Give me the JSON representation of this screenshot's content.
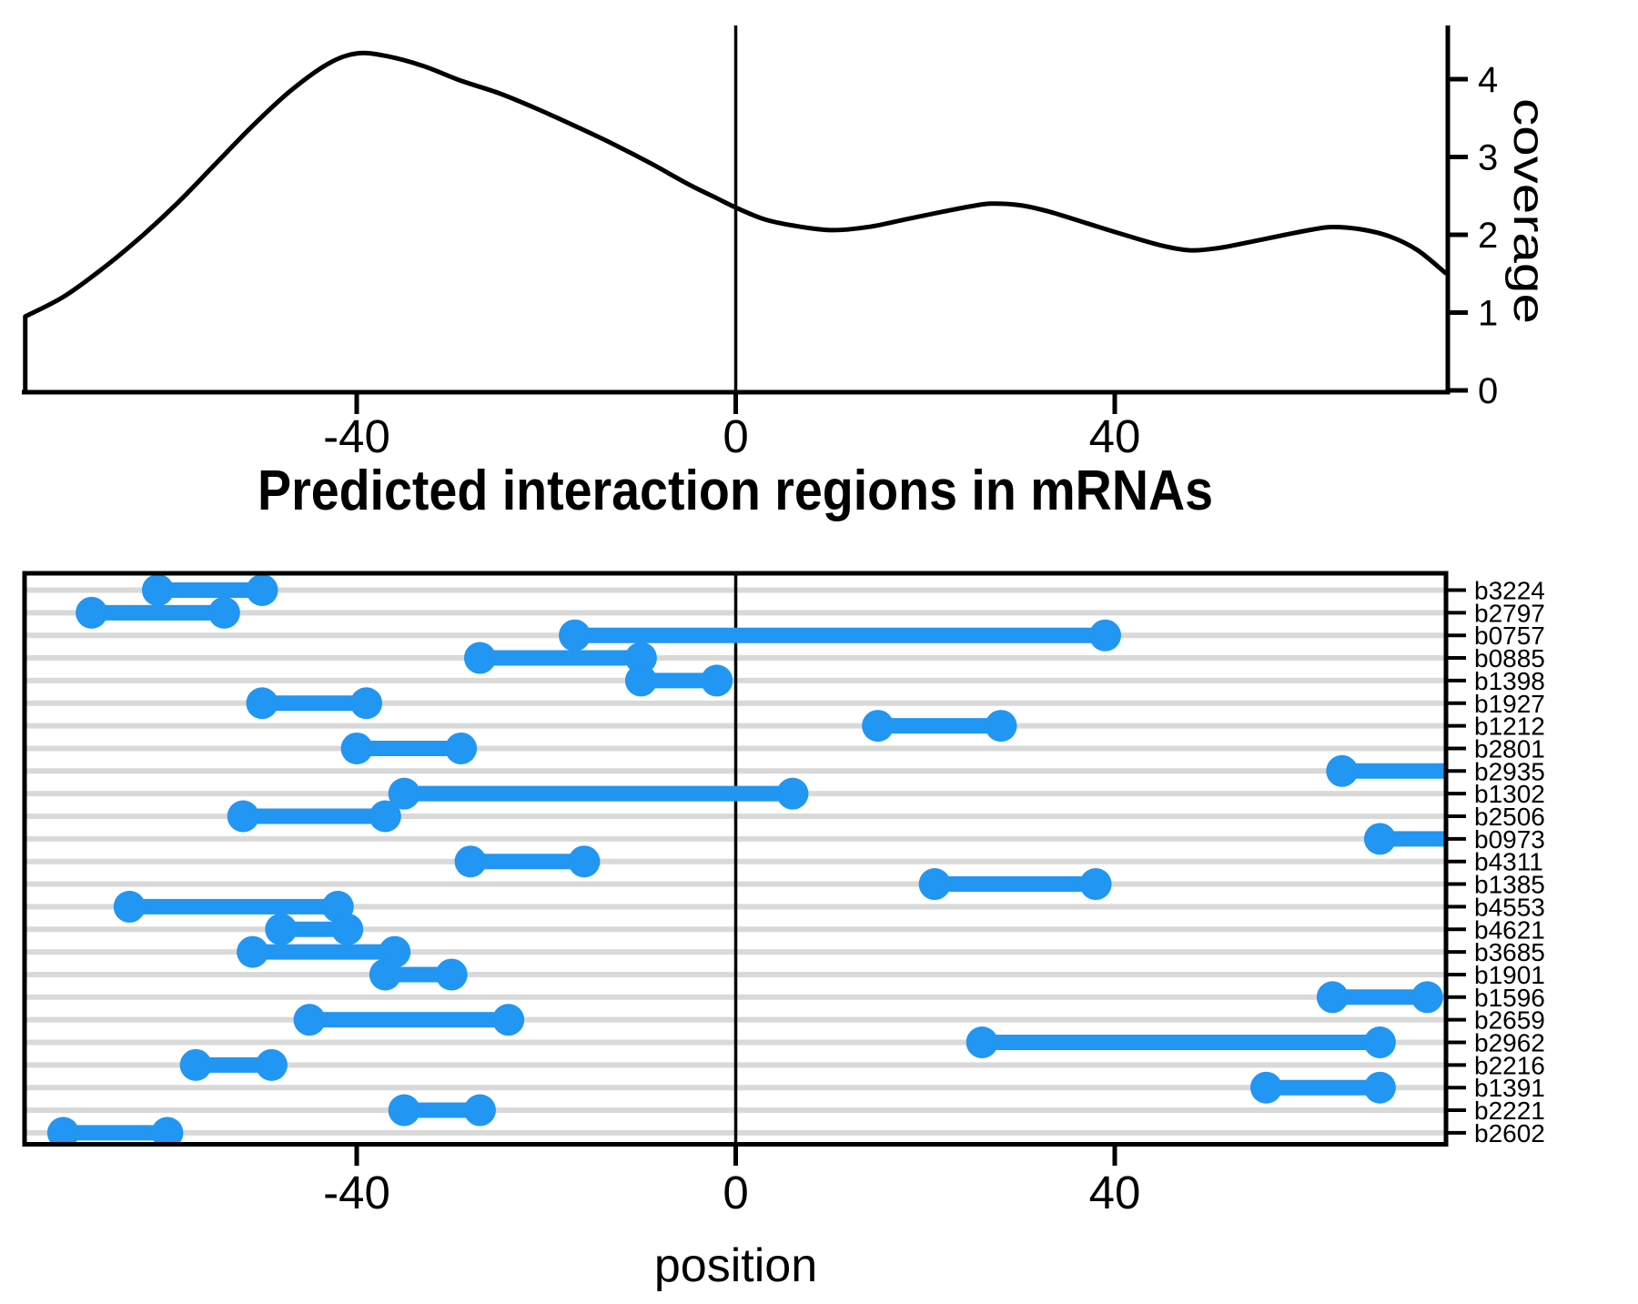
{
  "colors": {
    "segment_blue": "#2196F3",
    "gridline_gray": "#D9D9D9",
    "axis_black": "#000000",
    "background": "#FFFFFF"
  },
  "chart_data": [
    {
      "type": "line",
      "title": "",
      "ylabel": "coverage",
      "xlabel": "",
      "xlim": [
        -75,
        75
      ],
      "ylim": [
        0,
        4.69
      ],
      "xticks": [
        -40,
        0,
        40
      ],
      "xtick_labels": [
        "-40",
        "0",
        "40"
      ],
      "yticks": [
        0,
        1,
        2,
        3,
        4
      ],
      "ytick_labels": [
        "0",
        "1",
        "2",
        "3",
        "4"
      ],
      "yaxis_side": "right",
      "grid": false,
      "zero_line": true,
      "points": [
        [
          -75,
          0
        ],
        [
          -75,
          0.95
        ],
        [
          -71,
          1.2
        ],
        [
          -67,
          1.55
        ],
        [
          -63,
          1.95
        ],
        [
          -59,
          2.4
        ],
        [
          -55,
          2.9
        ],
        [
          -51,
          3.4
        ],
        [
          -47,
          3.85
        ],
        [
          -43,
          4.2
        ],
        [
          -40,
          4.33
        ],
        [
          -37,
          4.3
        ],
        [
          -33,
          4.17
        ],
        [
          -29,
          3.98
        ],
        [
          -25,
          3.82
        ],
        [
          -21,
          3.62
        ],
        [
          -17,
          3.4
        ],
        [
          -13,
          3.17
        ],
        [
          -9,
          2.92
        ],
        [
          -5,
          2.65
        ],
        [
          -2,
          2.47
        ],
        [
          0,
          2.35
        ],
        [
          3,
          2.2
        ],
        [
          6,
          2.12
        ],
        [
          10,
          2.06
        ],
        [
          14,
          2.1
        ],
        [
          18,
          2.2
        ],
        [
          22,
          2.3
        ],
        [
          25,
          2.37
        ],
        [
          27,
          2.4
        ],
        [
          30,
          2.38
        ],
        [
          33,
          2.3
        ],
        [
          37,
          2.15
        ],
        [
          41,
          2.0
        ],
        [
          45,
          1.86
        ],
        [
          48,
          1.8
        ],
        [
          51,
          1.83
        ],
        [
          54,
          1.9
        ],
        [
          58,
          2.0
        ],
        [
          61,
          2.07
        ],
        [
          63,
          2.1
        ],
        [
          66,
          2.07
        ],
        [
          69,
          1.98
        ],
        [
          72,
          1.8
        ],
        [
          75,
          1.5
        ]
      ]
    },
    {
      "type": "segment",
      "title": "Predicted interaction regions in mRNAs",
      "xlabel": "position",
      "xlim": [
        -75,
        75
      ],
      "xticks": [
        -40,
        0,
        40
      ],
      "xtick_labels": [
        "-40",
        "0",
        "40"
      ],
      "grid": "horizontal",
      "zero_line": true,
      "rows": [
        {
          "label": "b3224",
          "start": -61,
          "end": -50
        },
        {
          "label": "b2797",
          "start": -68,
          "end": -54
        },
        {
          "label": "b0757",
          "start": -17,
          "end": 39
        },
        {
          "label": "b0885",
          "start": -27,
          "end": -10
        },
        {
          "label": "b1398",
          "start": -10,
          "end": -2
        },
        {
          "label": "b1927",
          "start": -50,
          "end": -39
        },
        {
          "label": "b1212",
          "start": 15,
          "end": 28
        },
        {
          "label": "b2801",
          "start": -40,
          "end": -29
        },
        {
          "label": "b2935",
          "start": 64,
          "end": 75,
          "end_clipped": true
        },
        {
          "label": "b1302",
          "start": -35,
          "end": 6
        },
        {
          "label": "b2506",
          "start": -52,
          "end": -37
        },
        {
          "label": "b0973",
          "start": 68,
          "end": 75,
          "end_clipped": true
        },
        {
          "label": "b4311",
          "start": -28,
          "end": -16
        },
        {
          "label": "b1385",
          "start": 21,
          "end": 38
        },
        {
          "label": "b4553",
          "start": -64,
          "end": -42
        },
        {
          "label": "b4621",
          "start": -48,
          "end": -41
        },
        {
          "label": "b3685",
          "start": -51,
          "end": -36
        },
        {
          "label": "b1901",
          "start": -37,
          "end": -30
        },
        {
          "label": "b1596",
          "start": 63,
          "end": 73
        },
        {
          "label": "b2659",
          "start": -45,
          "end": -24
        },
        {
          "label": "b2962",
          "start": 26,
          "end": 68
        },
        {
          "label": "b2216",
          "start": -57,
          "end": -49
        },
        {
          "label": "b1391",
          "start": 56,
          "end": 68
        },
        {
          "label": "b2221",
          "start": -35,
          "end": -27
        },
        {
          "label": "b2602",
          "start": -71,
          "end": -60
        }
      ]
    }
  ]
}
